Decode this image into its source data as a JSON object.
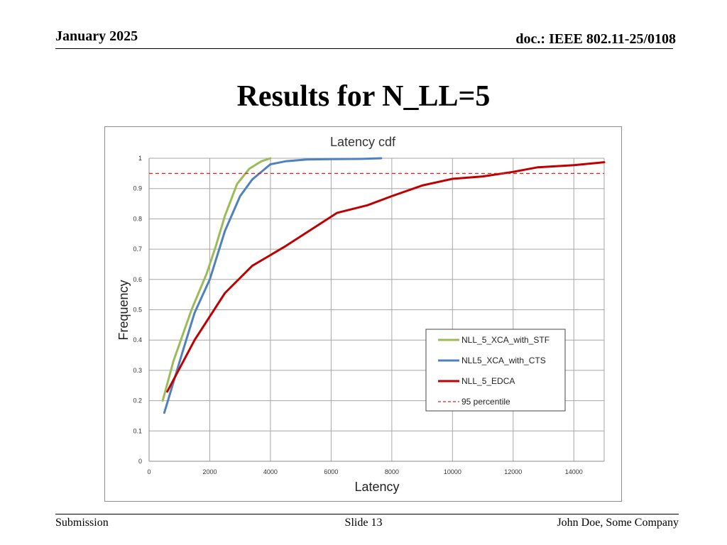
{
  "header": {
    "date": "January 2025",
    "doc": "doc.: IEEE 802.11-25/0108"
  },
  "slide_title": "Results for N_LL=5",
  "footer": {
    "left": "Submission",
    "center": "Slide 13",
    "right": "John Doe, Some Company"
  },
  "chart_data": {
    "type": "line",
    "title": "Latency cdf",
    "xlabel": "Latency",
    "ylabel": "Frequency",
    "xlim": [
      0,
      15000
    ],
    "ylim": [
      0,
      1
    ],
    "xticks": [
      0,
      2000,
      4000,
      6000,
      8000,
      10000,
      12000,
      14000
    ],
    "yticks": [
      0,
      0.1,
      0.2,
      0.3,
      0.4,
      0.5,
      0.6,
      0.7,
      0.8,
      0.9,
      1
    ],
    "grid": true,
    "legend_position": "lower-right",
    "series": [
      {
        "name": "NLL_5_XCA_with_STF",
        "color": "#9bbb59",
        "dashed": false,
        "points": [
          [
            450,
            0.2
          ],
          [
            800,
            0.33
          ],
          [
            1400,
            0.5
          ],
          [
            1900,
            0.62
          ],
          [
            2200,
            0.71
          ],
          [
            2500,
            0.81
          ],
          [
            2900,
            0.915
          ],
          [
            3300,
            0.965
          ],
          [
            3700,
            0.99
          ],
          [
            4000,
            1.0
          ]
        ]
      },
      {
        "name": "NLL5_XCA_with_CTS",
        "color": "#4f81bd",
        "dashed": false,
        "points": [
          [
            500,
            0.16
          ],
          [
            1100,
            0.36
          ],
          [
            1500,
            0.49
          ],
          [
            2000,
            0.6
          ],
          [
            2500,
            0.76
          ],
          [
            3000,
            0.875
          ],
          [
            3400,
            0.93
          ],
          [
            4000,
            0.98
          ],
          [
            4500,
            0.99
          ],
          [
            5200,
            0.996
          ],
          [
            6000,
            0.997
          ],
          [
            7000,
            0.998
          ],
          [
            7650,
            1.0
          ]
        ]
      },
      {
        "name": "NLL_5_EDCA",
        "color": "#c00000",
        "dashed": false,
        "points": [
          [
            600,
            0.23
          ],
          [
            1500,
            0.4
          ],
          [
            2500,
            0.555
          ],
          [
            3400,
            0.645
          ],
          [
            4500,
            0.71
          ],
          [
            6200,
            0.82
          ],
          [
            7200,
            0.845
          ],
          [
            8000,
            0.875
          ],
          [
            9000,
            0.91
          ],
          [
            10000,
            0.932
          ],
          [
            11000,
            0.94
          ],
          [
            12000,
            0.955
          ],
          [
            12800,
            0.97
          ],
          [
            14000,
            0.977
          ],
          [
            15000,
            0.987
          ]
        ]
      },
      {
        "name": "95 percentile",
        "color": "#e0201c",
        "dashed": true,
        "points": [
          [
            0,
            0.95
          ],
          [
            15000,
            0.95
          ]
        ]
      }
    ]
  }
}
